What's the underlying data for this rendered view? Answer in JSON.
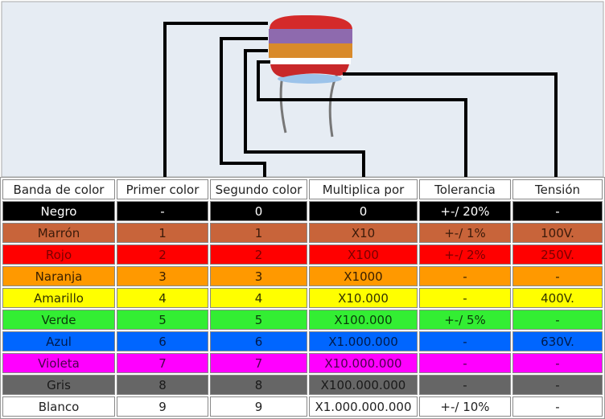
{
  "headers": [
    "Banda de color",
    "Primer color",
    "Segundo color",
    "Multiplica por",
    "Tolerancia",
    "Tensión"
  ],
  "rows": [
    {
      "bg": "#000000",
      "fg": "#ffffff",
      "cells": [
        "Negro",
        "-",
        "0",
        "0",
        "+-/ 20%",
        "-"
      ]
    },
    {
      "bg": "#c8643a",
      "fg": "#3a1a0a",
      "cells": [
        "Marrón",
        "1",
        "1",
        "X10",
        "+-/ 1%",
        "100V."
      ]
    },
    {
      "bg": "#ff0000",
      "fg": "#7a0000",
      "cells": [
        "Rojo",
        "2",
        "2",
        "X100",
        "+-/ 2%",
        "250V."
      ]
    },
    {
      "bg": "#ff9900",
      "fg": "#3a2000",
      "cells": [
        "Naranja",
        "3",
        "3",
        "X1000",
        "-",
        "-"
      ]
    },
    {
      "bg": "#ffff00",
      "fg": "#333300",
      "cells": [
        "Amarillo",
        "4",
        "4",
        "X10.000",
        "-",
        "400V."
      ]
    },
    {
      "bg": "#33ee33",
      "fg": "#0a3a0a",
      "cells": [
        "Verde",
        "5",
        "5",
        "X100.000",
        "+-/ 5%",
        "-"
      ]
    },
    {
      "bg": "#0066ff",
      "fg": "#001a4a",
      "cells": [
        "Azul",
        "6",
        "6",
        "X1.000.000",
        "-",
        "630V."
      ]
    },
    {
      "bg": "#ff00ff",
      "fg": "#4a004a",
      "cells": [
        "Violeta",
        "7",
        "7",
        "X10.000.000",
        "-",
        "-"
      ]
    },
    {
      "bg": "#666666",
      "fg": "#1a1a1a",
      "cells": [
        "Gris",
        "8",
        "8",
        "X100.000.000",
        "-",
        "-"
      ]
    },
    {
      "bg": "#ffffff",
      "fg": "#222222",
      "cells": [
        "Blanco",
        "9",
        "9",
        "X1.000.000.000",
        "+-/ 10%",
        "-"
      ]
    }
  ],
  "capacitor_bands": [
    "#d42a2a",
    "#8e6aae",
    "#d98a2a",
    "#ffffff",
    "#c8282a"
  ]
}
